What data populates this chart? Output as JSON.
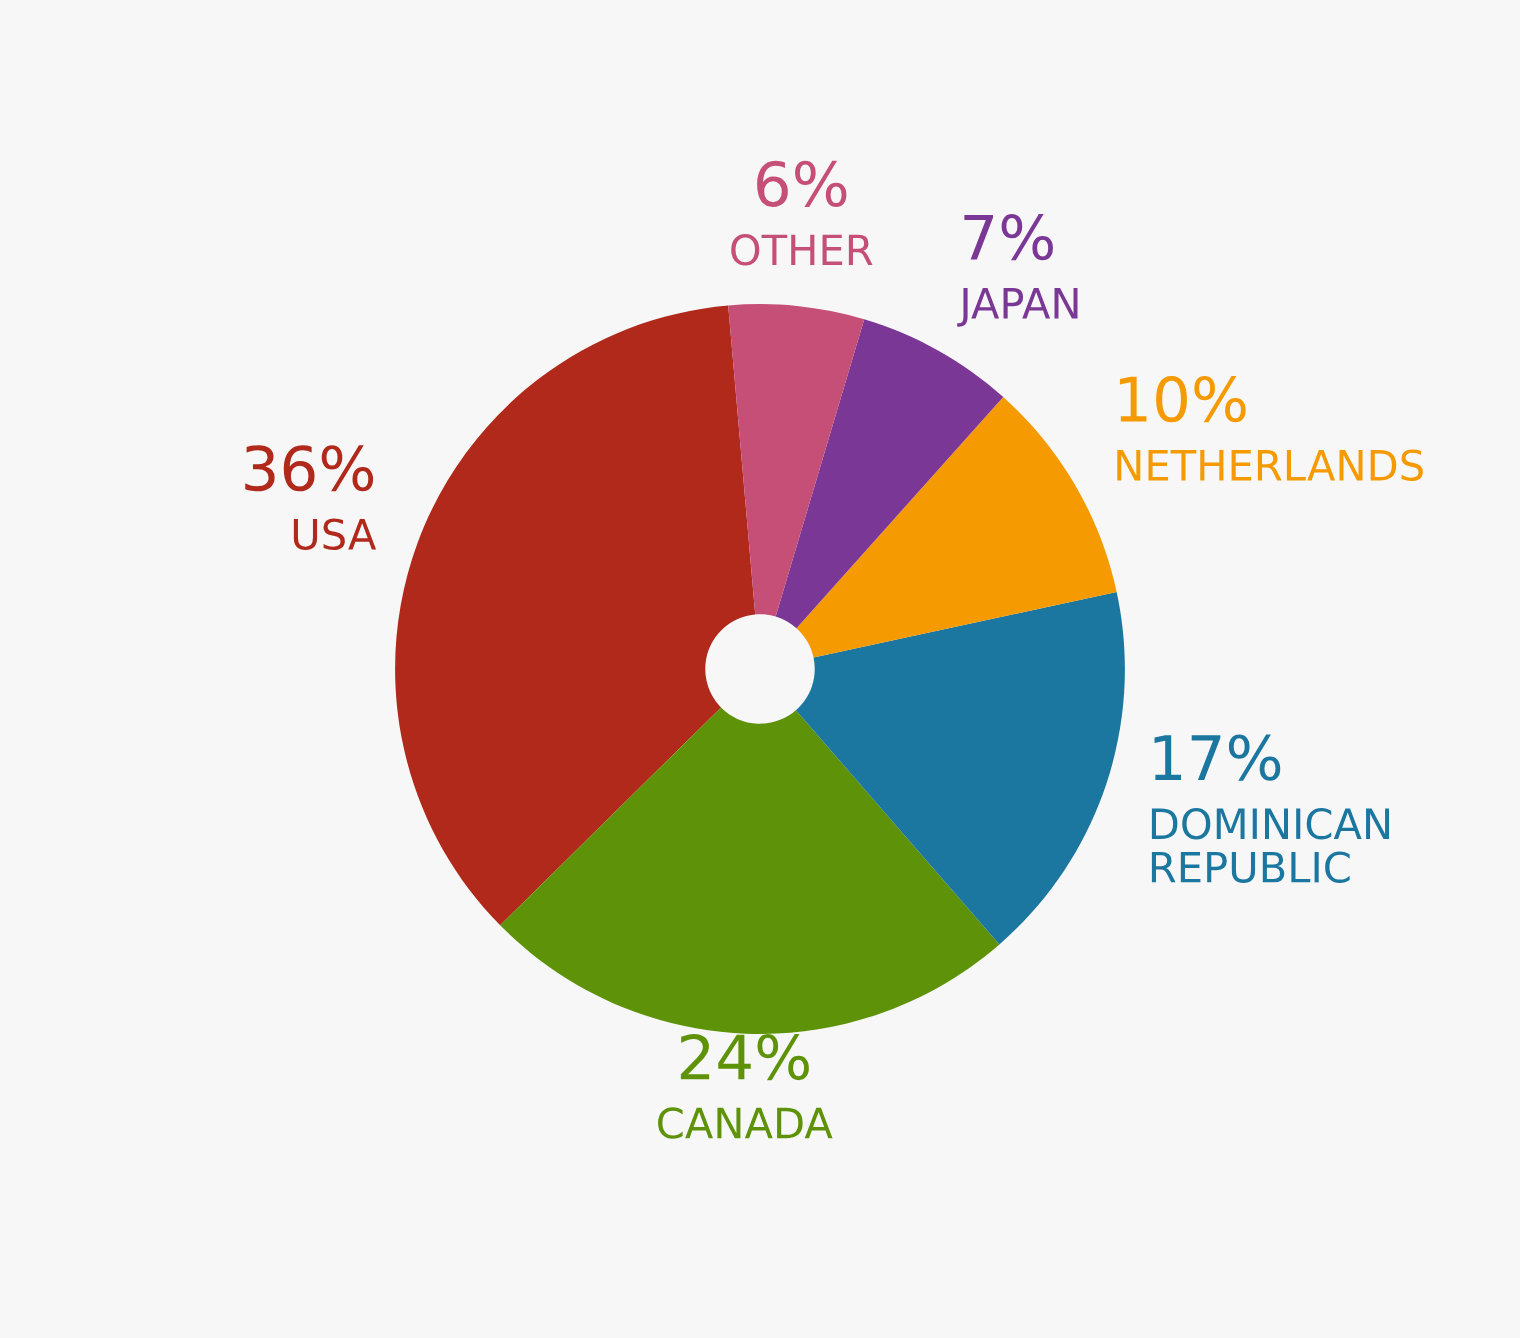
{
  "chart_data": {
    "type": "donut",
    "categories": [
      "USA",
      "CANADA",
      "DOMINICAN\nREPUBLIC",
      "NETHERLANDS",
      "JAPAN",
      "OTHER"
    ],
    "values": [
      36,
      24,
      17,
      10,
      7,
      6
    ],
    "value_labels": [
      "36%",
      "24%",
      "17%",
      "10%",
      "7%",
      "6%"
    ],
    "colors": [
      "#b0291b",
      "#5e9208",
      "#1b77a0",
      "#f59a00",
      "#7b3796",
      "#c64f77"
    ]
  }
}
